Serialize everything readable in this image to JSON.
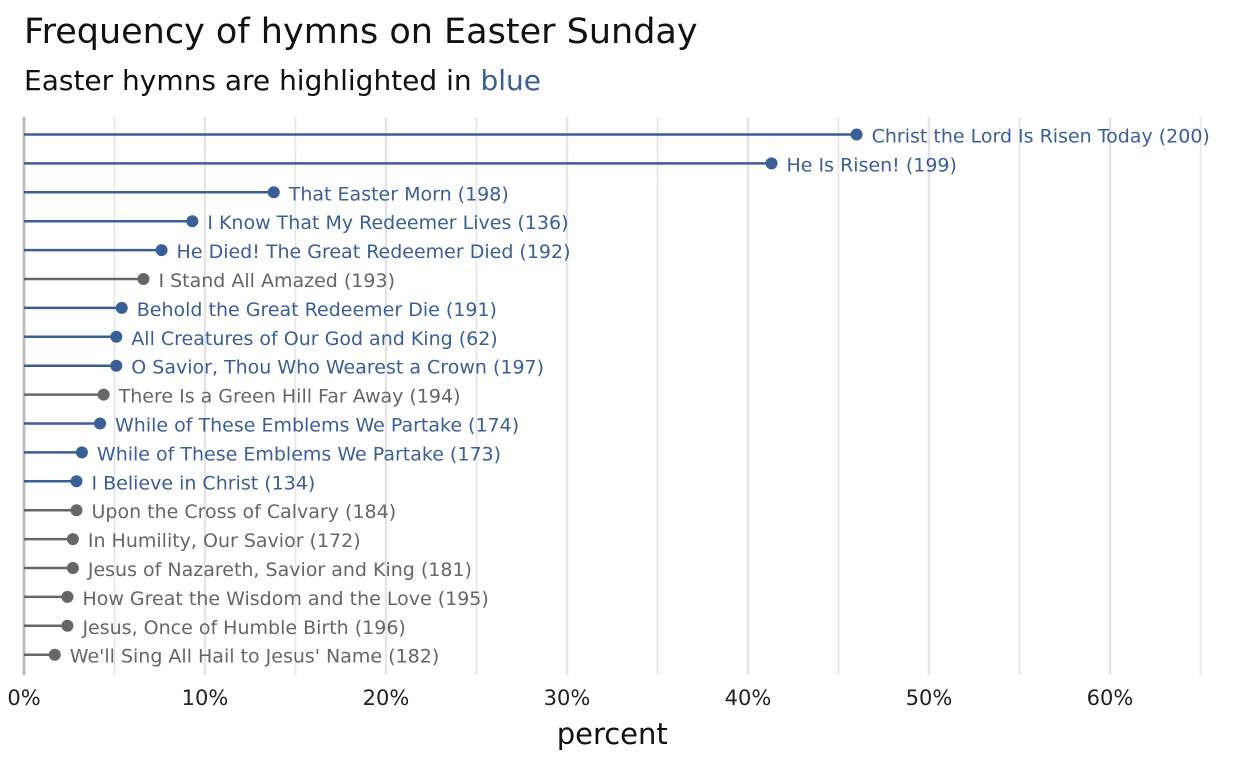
{
  "title": "Frequency of hymns on Easter Sunday",
  "subtitle_prefix": "Easter hymns are highlighted in",
  "subtitle_highlight": "blue",
  "colors": {
    "easter": "#3a5f96",
    "other": "#666666",
    "grid": "#e5e5e5",
    "axis": "#bdbdbd"
  },
  "chart_data": {
    "type": "lollipop",
    "xlabel": "percent",
    "xlim": [
      0,
      65
    ],
    "xticks": [
      {
        "value": 0,
        "label": "0%"
      },
      {
        "value": 10,
        "label": "10%"
      },
      {
        "value": 20,
        "label": "20%"
      },
      {
        "value": 30,
        "label": "30%"
      },
      {
        "value": 40,
        "label": "40%"
      },
      {
        "value": 50,
        "label": "50%"
      },
      {
        "value": 60,
        "label": "60%"
      }
    ],
    "minor_gridlines": [
      5,
      15,
      25,
      35,
      45,
      55,
      65
    ],
    "items": [
      {
        "label": "Christ the Lord Is Risen Today (200)",
        "value": 46.0,
        "easter": true
      },
      {
        "label": "He Is Risen! (199)",
        "value": 41.3,
        "easter": true
      },
      {
        "label": "That Easter Morn (198)",
        "value": 13.8,
        "easter": true
      },
      {
        "label": "I Know That My Redeemer Lives (136)",
        "value": 9.3,
        "easter": true
      },
      {
        "label": "He Died! The Great Redeemer Died (192)",
        "value": 7.6,
        "easter": true
      },
      {
        "label": "I Stand All Amazed (193)",
        "value": 6.6,
        "easter": false
      },
      {
        "label": "Behold the Great Redeemer Die (191)",
        "value": 5.4,
        "easter": true
      },
      {
        "label": "All Creatures of Our God and King (62)",
        "value": 5.1,
        "easter": true
      },
      {
        "label": "O Savior, Thou Who Wearest a Crown (197)",
        "value": 5.1,
        "easter": true
      },
      {
        "label": "There Is a Green Hill Far Away (194)",
        "value": 4.4,
        "easter": false
      },
      {
        "label": "While of These Emblems We Partake (174)",
        "value": 4.2,
        "easter": true
      },
      {
        "label": "While of These Emblems We Partake (173)",
        "value": 3.2,
        "easter": true
      },
      {
        "label": "I Believe in Christ (134)",
        "value": 2.9,
        "easter": true
      },
      {
        "label": "Upon the Cross of Calvary (184)",
        "value": 2.9,
        "easter": false
      },
      {
        "label": "In Humility, Our Savior (172)",
        "value": 2.7,
        "easter": false
      },
      {
        "label": "Jesus of Nazareth, Savior and King (181)",
        "value": 2.7,
        "easter": false
      },
      {
        "label": "How Great the Wisdom and the Love (195)",
        "value": 2.4,
        "easter": false
      },
      {
        "label": "Jesus, Once of Humble Birth (196)",
        "value": 2.4,
        "easter": false
      },
      {
        "label": "We'll Sing All Hail to Jesus' Name (182)",
        "value": 1.7,
        "easter": false
      }
    ]
  }
}
